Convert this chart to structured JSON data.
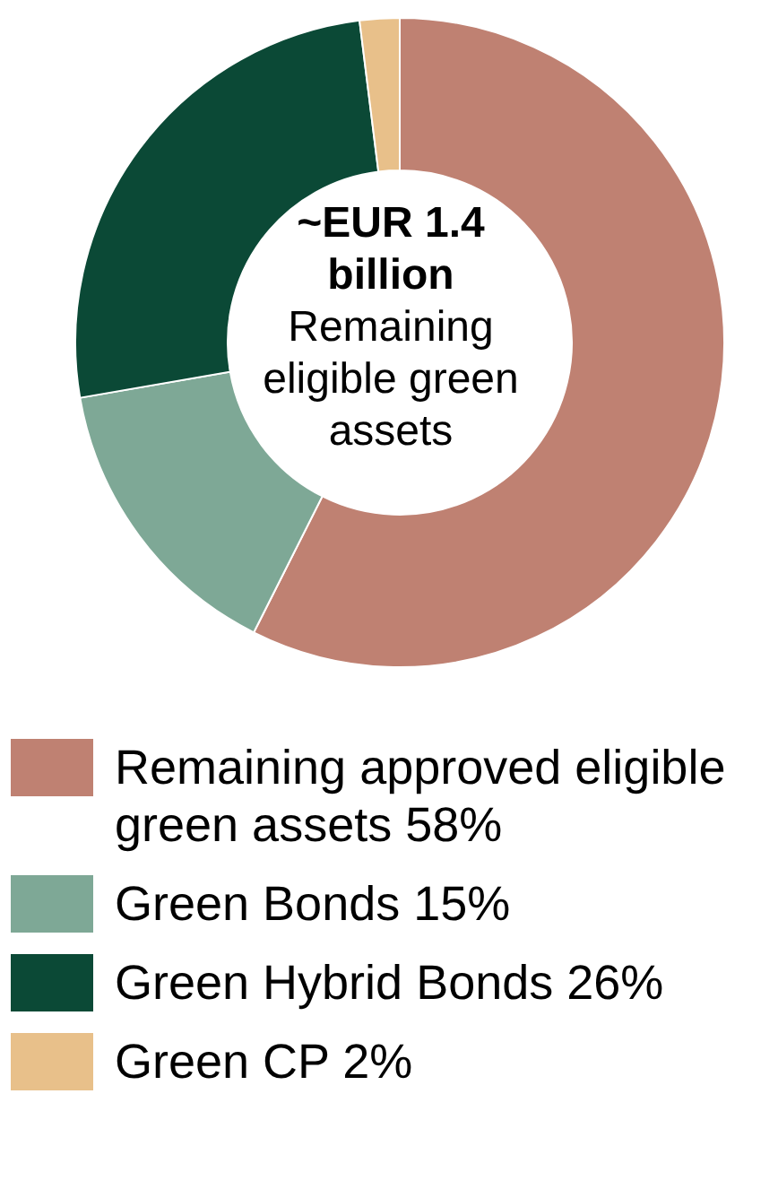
{
  "chart_data": {
    "type": "donut",
    "title": "~EUR 1.4 billion",
    "subtitle": "Remaining eligible green assets",
    "categories": [
      "Remaining approved eligible green assets",
      "Green Bonds",
      "Green Hybrid Bonds",
      "Green CP"
    ],
    "values": [
      58,
      15,
      26,
      2
    ],
    "value_labels": [
      "58%",
      "15%",
      "26%",
      "2%"
    ],
    "colors": [
      "#bf8172",
      "#7ea896",
      "#0b4936",
      "#e8c08a"
    ],
    "legend": "bottom"
  }
}
